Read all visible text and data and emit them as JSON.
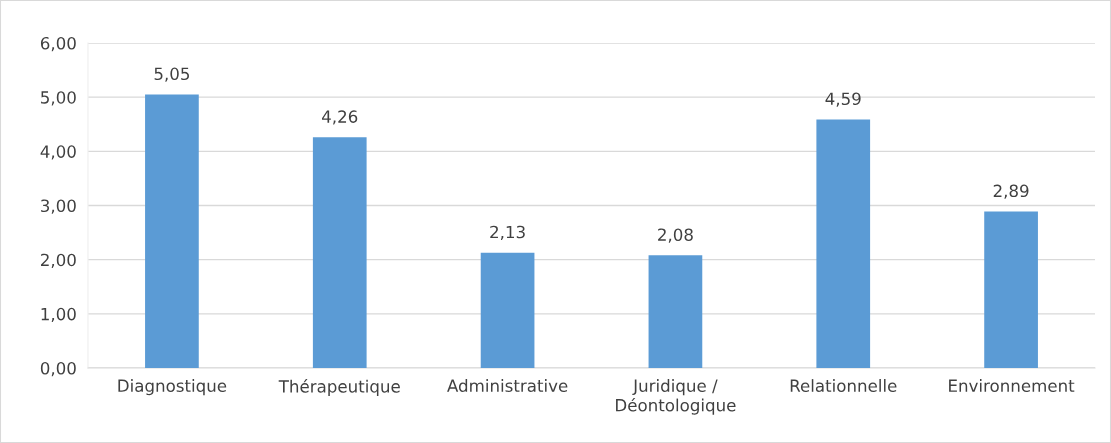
{
  "chart_data": {
    "type": "bar",
    "categories": [
      "Diagnostique",
      "Thérapeutique",
      "Administrative",
      "Juridique /\nDéontologique",
      "Relationnelle",
      "Environnement"
    ],
    "values": [
      5.05,
      4.26,
      2.13,
      2.08,
      4.59,
      2.89
    ],
    "value_labels": [
      "5,05",
      "4,26",
      "2,13",
      "2,08",
      "4,59",
      "2,89"
    ],
    "color": "#5b9bd5",
    "ylim": [
      0,
      6
    ],
    "yticks": [
      {
        "value": 0,
        "label": "0,00"
      },
      {
        "value": 1,
        "label": "1,00"
      },
      {
        "value": 2,
        "label": "2,00"
      },
      {
        "value": 3,
        "label": "3,00"
      },
      {
        "value": 4,
        "label": "4,00"
      },
      {
        "value": 5,
        "label": "5,00"
      },
      {
        "value": 6,
        "label": "6,00"
      }
    ],
    "grid": "y"
  }
}
